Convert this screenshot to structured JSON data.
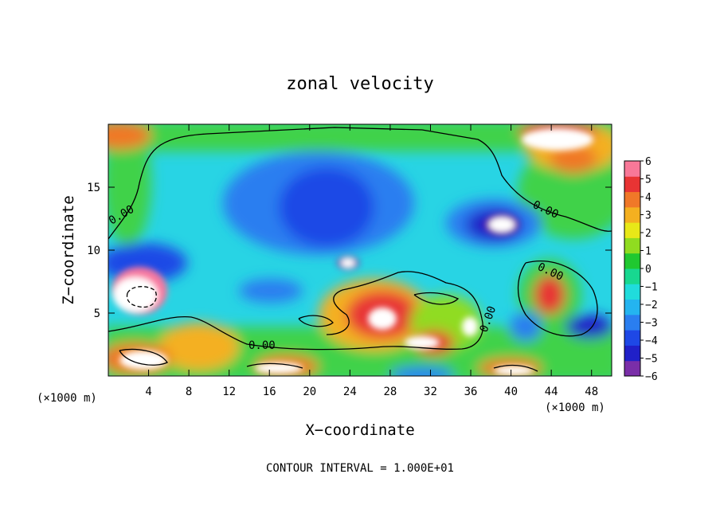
{
  "chart_data": {
    "type": "heatmap",
    "title": "zonal velocity",
    "xlabel": "X−coordinate",
    "ylabel": "Z−coordinate",
    "x_unit_left": "(×1000 m)",
    "x_unit_right": "(×1000 m)",
    "xlim": [
      0,
      50
    ],
    "ylim": [
      0,
      20
    ],
    "xticks": [
      4,
      8,
      12,
      16,
      20,
      24,
      28,
      32,
      36,
      40,
      44,
      48
    ],
    "yticks": [
      5,
      10,
      15
    ],
    "colorbar": {
      "ticks": [
        "6",
        "5",
        "4",
        "3",
        "2",
        "1",
        "0",
        "−1",
        "−2",
        "−3",
        "−4",
        "−5",
        "−6"
      ],
      "range": [
        -6,
        6
      ],
      "colors": [
        "#7a2ea8",
        "#2020c8",
        "#1e48e6",
        "#2a7ef0",
        "#24b4f0",
        "#20dcdc",
        "#18d890",
        "#20c830",
        "#90dc20",
        "#e8e818",
        "#f4b020",
        "#f07828",
        "#e83434",
        "#f87898"
      ]
    },
    "contour_labels": [
      "0.00",
      "0.00",
      "0.00",
      "0.00",
      "0.00"
    ],
    "footer": "CONTOUR INTERVAL = 1.000E+01"
  }
}
